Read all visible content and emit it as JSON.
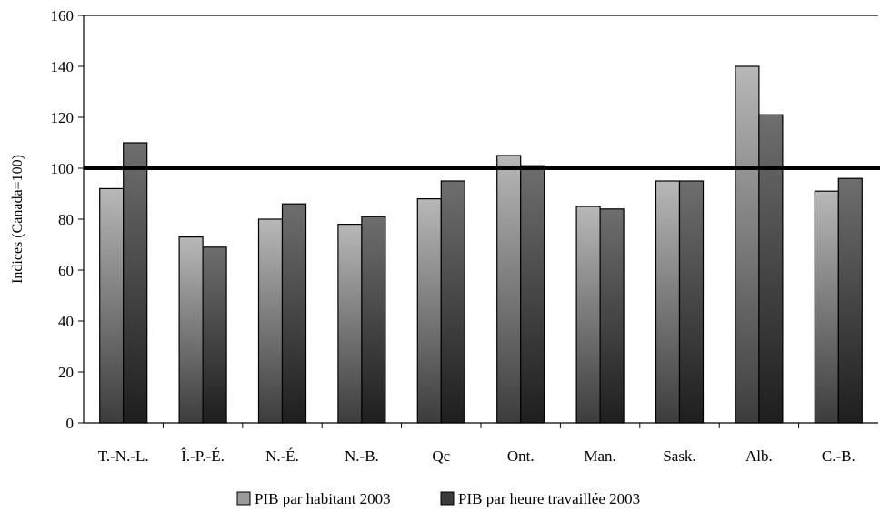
{
  "chart_data": {
    "type": "bar",
    "title": "",
    "xlabel": "",
    "ylabel": "Indices (Canada=100)",
    "ylim": [
      0,
      160
    ],
    "yticks": [
      0,
      20,
      40,
      60,
      80,
      100,
      120,
      140,
      160
    ],
    "categories": [
      "T.-N.-L.",
      "Î.-P.-É.",
      "N.-É.",
      "N.-B.",
      "Qc",
      "Ont.",
      "Man.",
      "Sask.",
      "Alb.",
      "C.-B."
    ],
    "series": [
      {
        "name": "PIB par habitant 2003",
        "values": [
          92,
          73,
          80,
          78,
          88,
          105,
          85,
          95,
          140,
          91
        ]
      },
      {
        "name": "PIB par heure travaillée 2003",
        "values": [
          110,
          69,
          86,
          81,
          95,
          101,
          84,
          95,
          121,
          96
        ]
      }
    ],
    "reference_line": 100,
    "grid": false,
    "legend_position": "bottom"
  }
}
